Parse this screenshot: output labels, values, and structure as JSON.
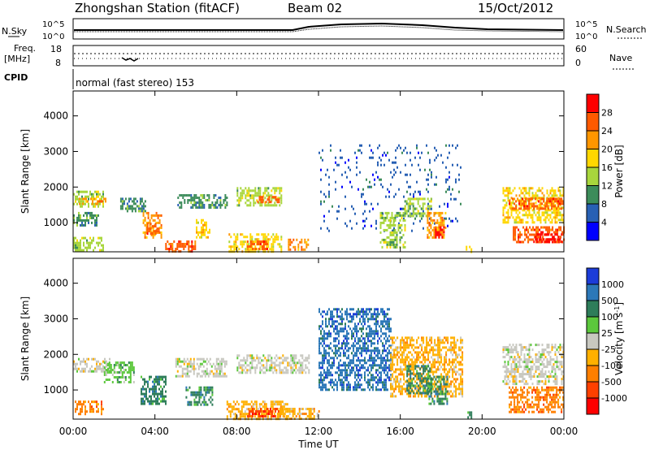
{
  "header": {
    "title": "Zhongshan Station (fitACF)",
    "beam": "Beam 02",
    "date": "15/Oct/2012"
  },
  "noise_panel": {
    "left_label": "N.Sky",
    "left_ticks": [
      "10^5",
      "10^0"
    ],
    "right_label": "N.Search",
    "right_ticks": [
      "10^5",
      "10^0"
    ]
  },
  "freq_panel": {
    "left_label_1": "Freq.",
    "left_label_2": "[MHz]",
    "left_ticks": [
      "18",
      "8"
    ],
    "right_label": "Nave",
    "right_ticks": [
      "60",
      "0"
    ]
  },
  "cpid": {
    "label": "CPID",
    "mode": "normal (fast stereo) 153"
  },
  "power_colorbar": {
    "label": "Power [dB]",
    "ticks": [
      "28",
      "24",
      "20",
      "16",
      "12",
      "8",
      "4"
    ],
    "colors": [
      "#ff0000",
      "#ff5a00",
      "#ff9600",
      "#ffd700",
      "#a8d63c",
      "#3c8c5a",
      "#2860b4",
      "#0000ff"
    ]
  },
  "velocity_colorbar": {
    "label": "Velocity [m s^-1]",
    "label_main": "Velocity",
    "label_unit": "[m s",
    "label_sup": "-1",
    "label_end": "]",
    "ticks": [
      "1000",
      "500",
      "100",
      "25",
      "-25",
      "-100",
      "-500",
      "-1000"
    ],
    "colors": [
      "#1c3cd8",
      "#2c78b8",
      "#2e7d5a",
      "#5cc83c",
      "#c8c8c0",
      "#ffb000",
      "#ff7f00",
      "#ff4000",
      "#ff0000"
    ]
  },
  "chart_data": {
    "type": "heatmap",
    "xlabel": "Time UT",
    "x_ticks": [
      "00:00",
      "04:00",
      "08:00",
      "12:00",
      "16:00",
      "20:00",
      "00:00"
    ],
    "xlim_hours": [
      0,
      24
    ],
    "ylabel": "Slant Range [km]",
    "y_ticks": [
      1000,
      2000,
      3000,
      4000
    ],
    "ylim_km": [
      180,
      4700
    ],
    "panels": [
      {
        "name": "Power",
        "regions": [
          {
            "t": [
              0.0,
              1.5
            ],
            "r": [
              1450,
              1900
            ],
            "level": 3
          },
          {
            "t": [
              0.2,
              1.6
            ],
            "r": [
              1500,
              1700
            ],
            "level": 5
          },
          {
            "t": [
              0.0,
              1.2
            ],
            "r": [
              900,
              1300
            ],
            "level": 2
          },
          {
            "t": [
              0.0,
              1.5
            ],
            "r": [
              250,
              600
            ],
            "level": 3
          },
          {
            "t": [
              2.3,
              3.5
            ],
            "r": [
              1300,
              1700
            ],
            "level": 2
          },
          {
            "t": [
              3.4,
              4.3
            ],
            "r": [
              600,
              1300
            ],
            "level": 5
          },
          {
            "t": [
              3.6,
              4.2
            ],
            "r": [
              700,
              1000
            ],
            "level": 6
          },
          {
            "t": [
              4.5,
              6.0
            ],
            "r": [
              200,
              500
            ],
            "level": 6
          },
          {
            "t": [
              6.0,
              6.7
            ],
            "r": [
              600,
              1100
            ],
            "level": 4
          },
          {
            "t": [
              5.1,
              7.5
            ],
            "r": [
              1400,
              1800
            ],
            "level": 2
          },
          {
            "t": [
              7.6,
              10.2
            ],
            "r": [
              200,
              700
            ],
            "level": 4
          },
          {
            "t": [
              8.5,
              9.5
            ],
            "r": [
              250,
              500
            ],
            "level": 6
          },
          {
            "t": [
              8.0,
              10.2
            ],
            "r": [
              1500,
              2000
            ],
            "level": 3
          },
          {
            "t": [
              9.0,
              10.1
            ],
            "r": [
              1550,
              1750
            ],
            "level": 6
          },
          {
            "t": [
              10.5,
              11.5
            ],
            "r": [
              250,
              550
            ],
            "level": 5
          },
          {
            "t": [
              12.0,
              19.0
            ],
            "r": [
              800,
              3200
            ],
            "level": 1
          },
          {
            "t": [
              15.0,
              16.2
            ],
            "r": [
              300,
              1300
            ],
            "level": 3
          },
          {
            "t": [
              16.2,
              17.5
            ],
            "r": [
              1200,
              1700
            ],
            "level": 3
          },
          {
            "t": [
              17.3,
              18.2
            ],
            "r": [
              600,
              1300
            ],
            "level": 5
          },
          {
            "t": [
              17.7,
              18.1
            ],
            "r": [
              600,
              900
            ],
            "level": 7
          },
          {
            "t": [
              19.2,
              19.5
            ],
            "r": [
              200,
              350
            ],
            "level": 4
          },
          {
            "t": [
              21.0,
              24.0
            ],
            "r": [
              1000,
              2000
            ],
            "level": 4
          },
          {
            "t": [
              21.3,
              24.0
            ],
            "r": [
              1400,
              1700
            ],
            "level": 6
          },
          {
            "t": [
              21.5,
              24.0
            ],
            "r": [
              450,
              900
            ],
            "level": 6
          },
          {
            "t": [
              22.5,
              24.0
            ],
            "r": [
              450,
              700
            ],
            "level": 7
          }
        ]
      },
      {
        "name": "Velocity",
        "regions": [
          {
            "t": [
              0.0,
              1.8
            ],
            "r": [
              1500,
              1900
            ],
            "level": 4
          },
          {
            "t": [
              0.0,
              1.5
            ],
            "r": [
              300,
              700
            ],
            "level": 2
          },
          {
            "t": [
              1.5,
              3.0
            ],
            "r": [
              1200,
              1800
            ],
            "level": 5
          },
          {
            "t": [
              3.3,
              4.5
            ],
            "r": [
              600,
              1400
            ],
            "level": 6
          },
          {
            "t": [
              5.0,
              7.5
            ],
            "r": [
              1400,
              1900
            ],
            "level": 4
          },
          {
            "t": [
              5.5,
              6.8
            ],
            "r": [
              600,
              1100
            ],
            "level": 6
          },
          {
            "t": [
              7.5,
              10.5
            ],
            "r": [
              200,
              700
            ],
            "level": 3
          },
          {
            "t": [
              8.5,
              10.2
            ],
            "r": [
              250,
              500
            ],
            "level": 1
          },
          {
            "t": [
              8.0,
              11.5
            ],
            "r": [
              1500,
              2000
            ],
            "level": 4
          },
          {
            "t": [
              10.0,
              12.0
            ],
            "r": [
              200,
              500
            ],
            "level": 3
          },
          {
            "t": [
              12.0,
              15.5
            ],
            "r": [
              1000,
              3300
            ],
            "level": 7
          },
          {
            "t": [
              15.5,
              19.0
            ],
            "r": [
              800,
              2500
            ],
            "level": 3
          },
          {
            "t": [
              16.3,
              17.5
            ],
            "r": [
              900,
              1700
            ],
            "level": 6
          },
          {
            "t": [
              17.3,
              18.3
            ],
            "r": [
              600,
              1400
            ],
            "level": 6
          },
          {
            "t": [
              19.2,
              19.5
            ],
            "r": [
              200,
              400
            ],
            "level": 6
          },
          {
            "t": [
              21.0,
              24.0
            ],
            "r": [
              1200,
              2300
            ],
            "level": 4
          },
          {
            "t": [
              21.3,
              24.0
            ],
            "r": [
              400,
              1100
            ],
            "level": 2
          }
        ]
      }
    ],
    "noise": {
      "n_sky_log": 4.2,
      "n_search_log": 4.3
    },
    "frequency_mhz": 10.5,
    "nave": 40
  }
}
